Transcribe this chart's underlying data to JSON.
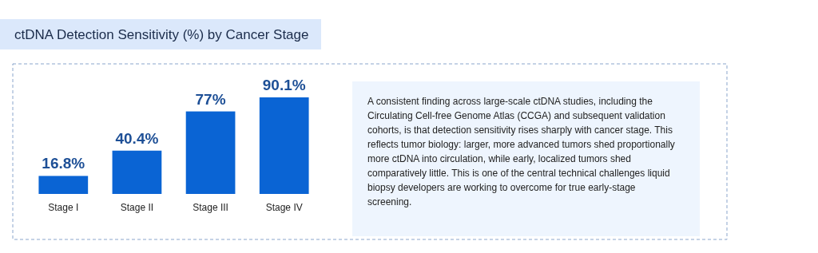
{
  "chart_data": {
    "type": "bar",
    "title": "ctDNA Detection Sensitivity (%) by Cancer Stage",
    "categories": [
      "Stage I",
      "Stage II",
      "Stage III",
      "Stage IV"
    ],
    "values": [
      16.8,
      40.4,
      77,
      90.1
    ],
    "value_labels": [
      "16.8%",
      "40.4%",
      "77%",
      "90.1%"
    ],
    "color": "#0a64d4",
    "annotations": [
      "A consistent finding across large-scale ctDNA studies, including the Circulating Cell-free Genome Atlas (CCGA) and subsequent validation cohorts, is that detection sensitivity rises sharply with cancer stage. This reflects tumor biology: larger, more advanced tumors shed proportionally more ctDNA into circulation, while early, localized tumors shed comparatively little. This is one of the central technical challenges liquid biopsy developers are working to overcome for true early-stage screening."
    ]
  }
}
